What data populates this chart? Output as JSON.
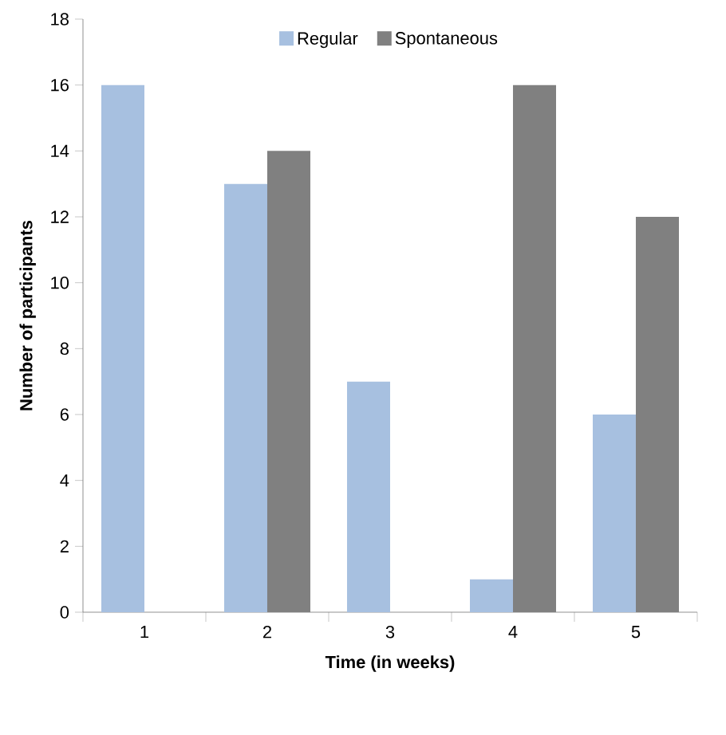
{
  "chart_data": {
    "type": "bar",
    "xlabel": "Time (in weeks)",
    "ylabel": "Number of participants",
    "categories": [
      "1",
      "2",
      "3",
      "4",
      "5"
    ],
    "series": [
      {
        "name": "Regular",
        "color": "#a7c0e0",
        "values": [
          16,
          13,
          7,
          1,
          6
        ]
      },
      {
        "name": "Spontaneous",
        "color": "#808080",
        "values": [
          0,
          14,
          0,
          16,
          12
        ]
      }
    ],
    "ylim": [
      0,
      18
    ],
    "yticks": [
      0,
      2,
      4,
      6,
      8,
      10,
      12,
      14,
      16,
      18
    ],
    "grid": false,
    "legend": "top"
  }
}
